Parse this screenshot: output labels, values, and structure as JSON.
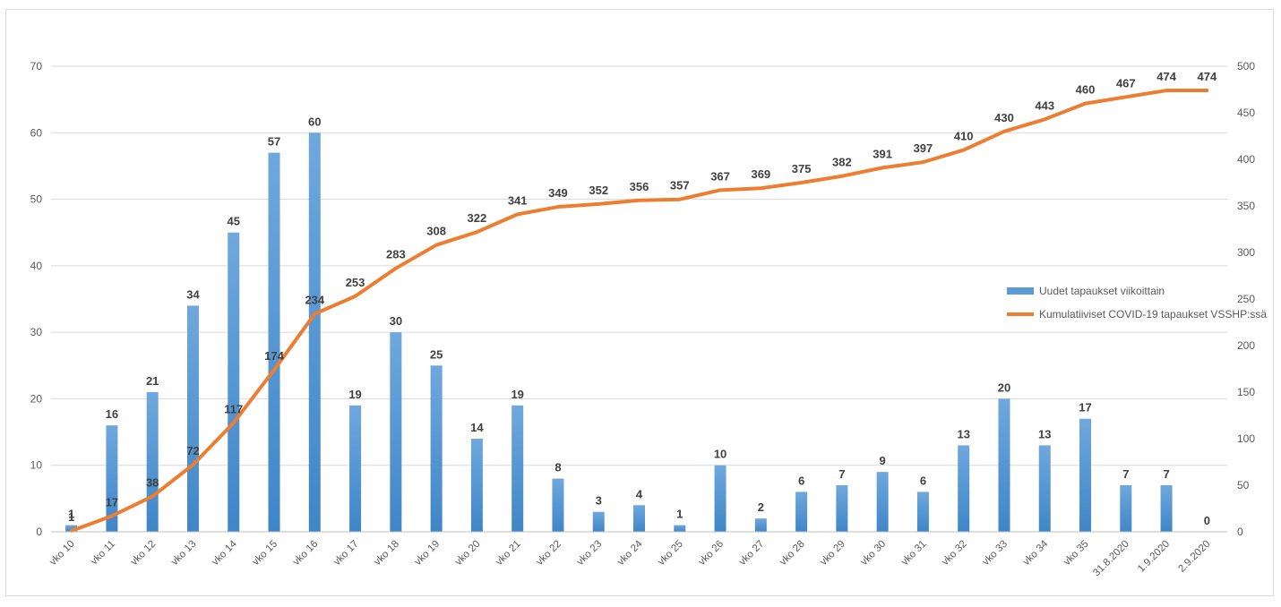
{
  "chart_data": {
    "type": "bar",
    "combo": "bar+line",
    "categories": [
      "vko 10",
      "vko 11",
      "vko 12",
      "vko 13",
      "vko 14",
      "vko 15",
      "vko 16",
      "vko 17",
      "vko 18",
      "vko 19",
      "vko 20",
      "vko 21",
      "vko 22",
      "vko 23",
      "vko 24",
      "vko 25",
      "vko 26",
      "vko 27",
      "vko 28",
      "vko 29",
      "vko 30",
      "vko 31",
      "vko 32",
      "vko 33",
      "vko 34",
      "vko 35",
      "31.8.2020",
      "1.9.2020",
      "2.9.2020"
    ],
    "series": [
      {
        "name": "Uudet tapaukset viikoittain",
        "type": "bar",
        "axis": "left",
        "color": "#5b9bd5",
        "values": [
          1,
          16,
          21,
          34,
          45,
          57,
          60,
          19,
          30,
          25,
          14,
          19,
          8,
          3,
          4,
          1,
          10,
          2,
          6,
          7,
          9,
          6,
          13,
          20,
          13,
          17,
          7,
          7,
          0
        ]
      },
      {
        "name": "Kumulatiiviset COVID-19 tapaukset VSSHP:ssä",
        "type": "line",
        "axis": "right",
        "color": "#ed7d31",
        "values": [
          1,
          17,
          38,
          72,
          117,
          174,
          234,
          253,
          283,
          308,
          322,
          341,
          349,
          352,
          356,
          357,
          367,
          369,
          375,
          382,
          391,
          397,
          410,
          430,
          443,
          460,
          467,
          474,
          474
        ]
      }
    ],
    "y_left": {
      "min": 0,
      "max": 70,
      "step": 10
    },
    "y_right": {
      "min": 0,
      "max": 500,
      "step": 50
    },
    "grid": true,
    "legend_position": "right",
    "title": "",
    "xlabel": "",
    "ylabel": ""
  }
}
